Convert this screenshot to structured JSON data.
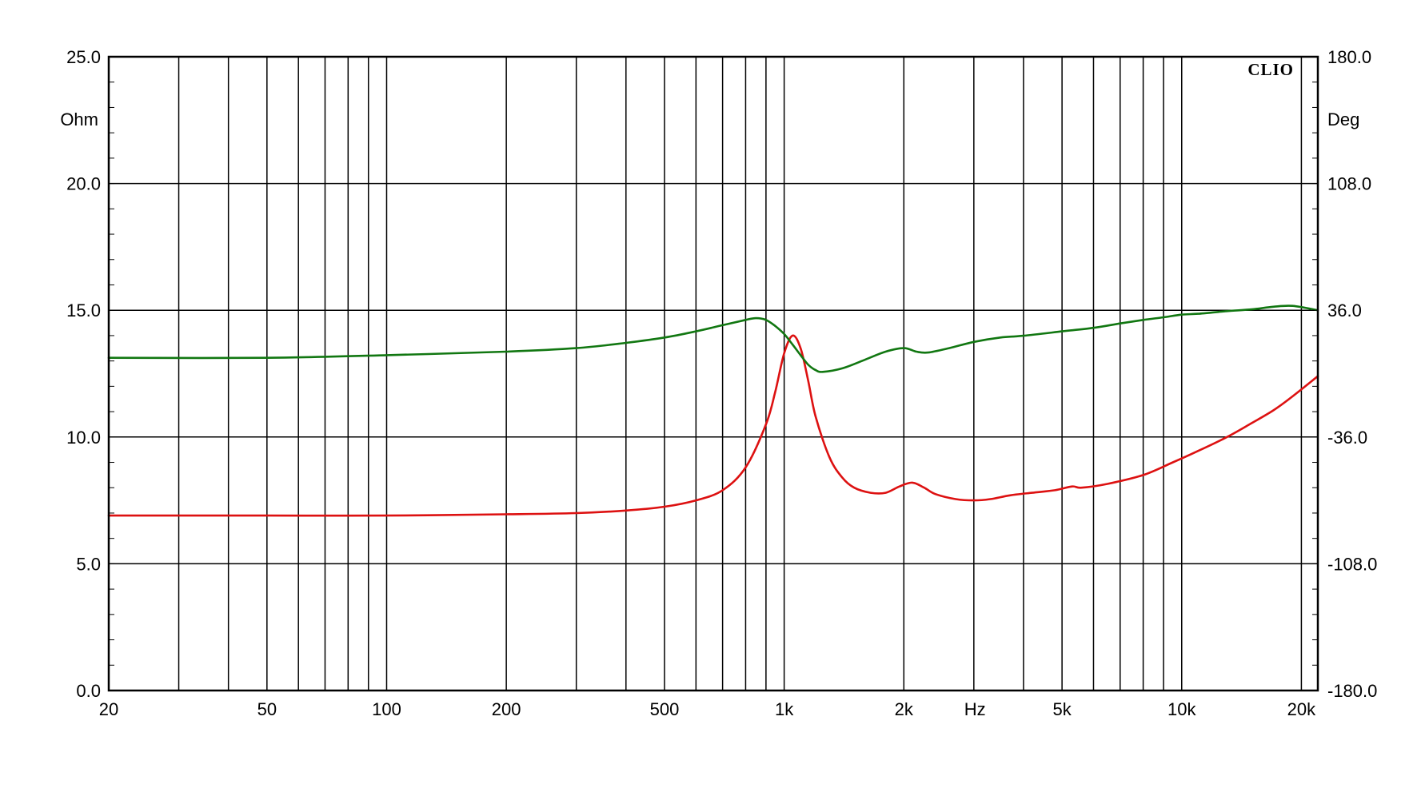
{
  "chart_data": {
    "type": "line",
    "brand": "CLIO",
    "x_axis": {
      "scale": "log",
      "range": [
        20,
        22000
      ],
      "unit": "Hz",
      "tick_labels": [
        {
          "value": 20,
          "label": "20"
        },
        {
          "value": 50,
          "label": "50"
        },
        {
          "value": 100,
          "label": "100"
        },
        {
          "value": 200,
          "label": "200"
        },
        {
          "value": 500,
          "label": "500"
        },
        {
          "value": 1000,
          "label": "1k"
        },
        {
          "value": 2000,
          "label": "2k"
        },
        {
          "value": 5000,
          "label": "5k"
        },
        {
          "value": 10000,
          "label": "10k"
        },
        {
          "value": 20000,
          "label": "20k"
        }
      ],
      "gridlines": [
        20,
        30,
        40,
        50,
        60,
        70,
        80,
        90,
        100,
        200,
        300,
        400,
        500,
        600,
        700,
        800,
        900,
        1000,
        2000,
        3000,
        4000,
        5000,
        6000,
        7000,
        8000,
        9000,
        10000,
        20000
      ]
    },
    "y_left": {
      "unit": "Ohm",
      "range": [
        0,
        25
      ],
      "ticks": [
        "0.0",
        "5.0",
        "10.0",
        "15.0",
        "20.0",
        "25.0"
      ],
      "tick_values": [
        0,
        5,
        10,
        15,
        20,
        25
      ]
    },
    "y_right": {
      "unit": "Deg",
      "range": [
        -180,
        180
      ],
      "ticks": [
        "-180.0",
        "-108.0",
        "-36.0",
        "36.0",
        "108.0",
        "180.0"
      ],
      "tick_values": [
        -180,
        -108,
        -36,
        36,
        108,
        180
      ]
    },
    "grid": true,
    "series": [
      {
        "axis": "left",
        "color": "#dd1111",
        "points": [
          [
            20,
            6.9
          ],
          [
            50,
            6.9
          ],
          [
            100,
            6.9
          ],
          [
            200,
            6.95
          ],
          [
            300,
            7.0
          ],
          [
            400,
            7.1
          ],
          [
            500,
            7.25
          ],
          [
            600,
            7.5
          ],
          [
            700,
            7.9
          ],
          [
            800,
            8.8
          ],
          [
            900,
            10.5
          ],
          [
            950,
            11.8
          ],
          [
            1000,
            13.3
          ],
          [
            1050,
            14.0
          ],
          [
            1100,
            13.5
          ],
          [
            1150,
            12.2
          ],
          [
            1200,
            10.8
          ],
          [
            1300,
            9.2
          ],
          [
            1400,
            8.4
          ],
          [
            1500,
            8.0
          ],
          [
            1650,
            7.8
          ],
          [
            1800,
            7.8
          ],
          [
            1950,
            8.05
          ],
          [
            2100,
            8.2
          ],
          [
            2250,
            8.0
          ],
          [
            2400,
            7.75
          ],
          [
            2700,
            7.55
          ],
          [
            3000,
            7.5
          ],
          [
            3300,
            7.55
          ],
          [
            3700,
            7.7
          ],
          [
            4200,
            7.8
          ],
          [
            4800,
            7.9
          ],
          [
            5300,
            8.05
          ],
          [
            5600,
            8.0
          ],
          [
            6500,
            8.15
          ],
          [
            8000,
            8.5
          ],
          [
            9500,
            9.0
          ],
          [
            11000,
            9.45
          ],
          [
            13000,
            10.0
          ],
          [
            15000,
            10.55
          ],
          [
            17000,
            11.05
          ],
          [
            19000,
            11.6
          ],
          [
            22000,
            12.4
          ]
        ]
      },
      {
        "axis": "right",
        "color": "#117711",
        "points": [
          [
            20,
            9.0
          ],
          [
            50,
            9.0
          ],
          [
            100,
            10.5
          ],
          [
            200,
            12.5
          ],
          [
            300,
            14.5
          ],
          [
            400,
            17.5
          ],
          [
            500,
            20.5
          ],
          [
            600,
            24.0
          ],
          [
            700,
            27.5
          ],
          [
            800,
            30.5
          ],
          [
            850,
            31.5
          ],
          [
            900,
            30.5
          ],
          [
            950,
            27.0
          ],
          [
            1000,
            22.5
          ],
          [
            1050,
            16.5
          ],
          [
            1100,
            10.5
          ],
          [
            1150,
            5.0
          ],
          [
            1200,
            2.0
          ],
          [
            1250,
            1.0
          ],
          [
            1400,
            3.0
          ],
          [
            1600,
            8.0
          ],
          [
            1800,
            12.5
          ],
          [
            2000,
            14.5
          ],
          [
            2150,
            12.5
          ],
          [
            2300,
            12.0
          ],
          [
            2600,
            14.5
          ],
          [
            3000,
            18.0
          ],
          [
            3500,
            20.5
          ],
          [
            4000,
            21.5
          ],
          [
            5000,
            24.0
          ],
          [
            6000,
            26.0
          ],
          [
            7000,
            28.5
          ],
          [
            8000,
            30.5
          ],
          [
            9000,
            32.0
          ],
          [
            10000,
            33.5
          ],
          [
            11000,
            34.0
          ],
          [
            13000,
            35.5
          ],
          [
            15000,
            36.5
          ],
          [
            17000,
            38.0
          ],
          [
            19000,
            38.5
          ],
          [
            22000,
            36.0
          ]
        ]
      }
    ]
  }
}
